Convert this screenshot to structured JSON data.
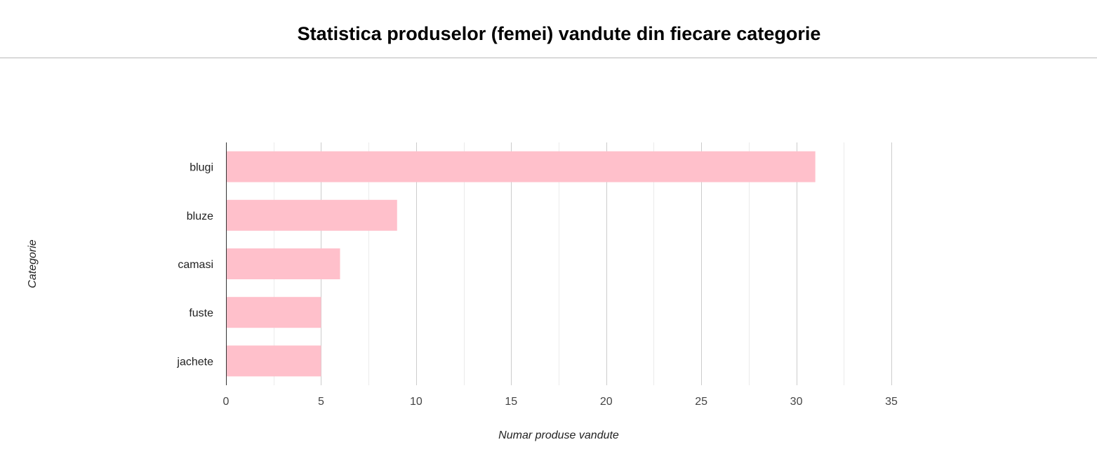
{
  "title": "Statistica produselor (femei) vandute din fiecare categorie",
  "chart_data": {
    "type": "bar",
    "orientation": "horizontal",
    "categories": [
      "blugi",
      "bluze",
      "camasi",
      "fuste",
      "jachete"
    ],
    "values": [
      31,
      9,
      6,
      5,
      5
    ],
    "xlabel": "Numar produse vandute",
    "ylabel": "Categorie",
    "xlim": [
      0,
      35
    ],
    "xticks": [
      0,
      5,
      10,
      15,
      20,
      25,
      30,
      35
    ],
    "grid": true,
    "legend": "none",
    "bar_color": "#ffc0cb",
    "grid_major_color": "#cccccc",
    "grid_minor_color": "#ebebeb",
    "axis_color": "#333333"
  }
}
